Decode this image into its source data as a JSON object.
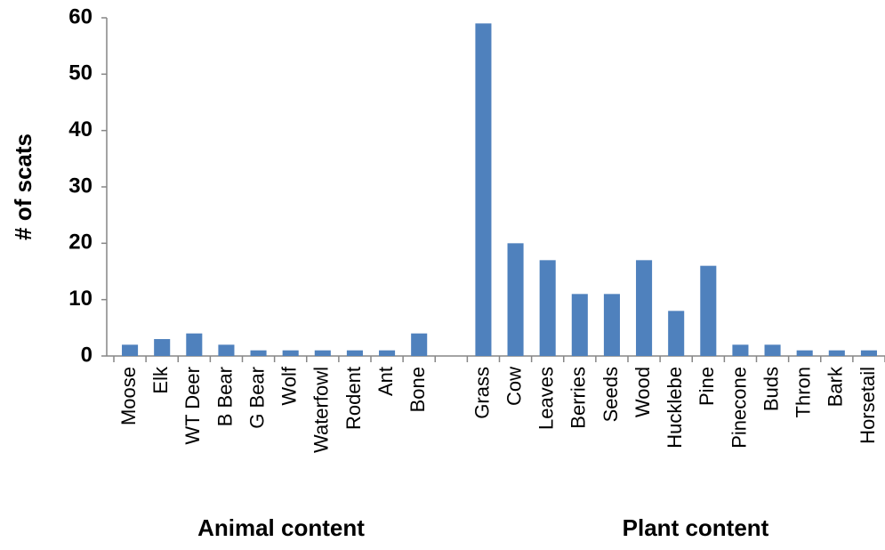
{
  "chart_data": {
    "type": "bar",
    "y_label": "# of scats",
    "categories": [
      "Moose",
      "Elk",
      "WT Deer",
      "B Bear",
      "G Bear",
      "Wolf",
      "Waterfowl",
      "Rodent",
      "Ant",
      "Bone",
      null,
      "Grass",
      "Cow",
      "Leaves",
      "Berries",
      "Seeds",
      "Wood",
      "Hucklebe",
      "Pine",
      "Pinecone",
      "Buds",
      "Thron",
      "Bark",
      "Horsetail"
    ],
    "values": [
      2,
      3,
      4,
      2,
      1,
      1,
      1,
      1,
      1,
      4,
      null,
      59,
      20,
      17,
      11,
      11,
      17,
      8,
      16,
      2,
      2,
      1,
      1,
      1
    ],
    "group_labels": [
      "Animal content",
      "Plant content"
    ],
    "color": "#4f81bd",
    "ylim": [
      0,
      60
    ],
    "yticks": [
      0,
      10,
      20,
      30,
      40,
      50,
      60
    ],
    "grid": false
  }
}
